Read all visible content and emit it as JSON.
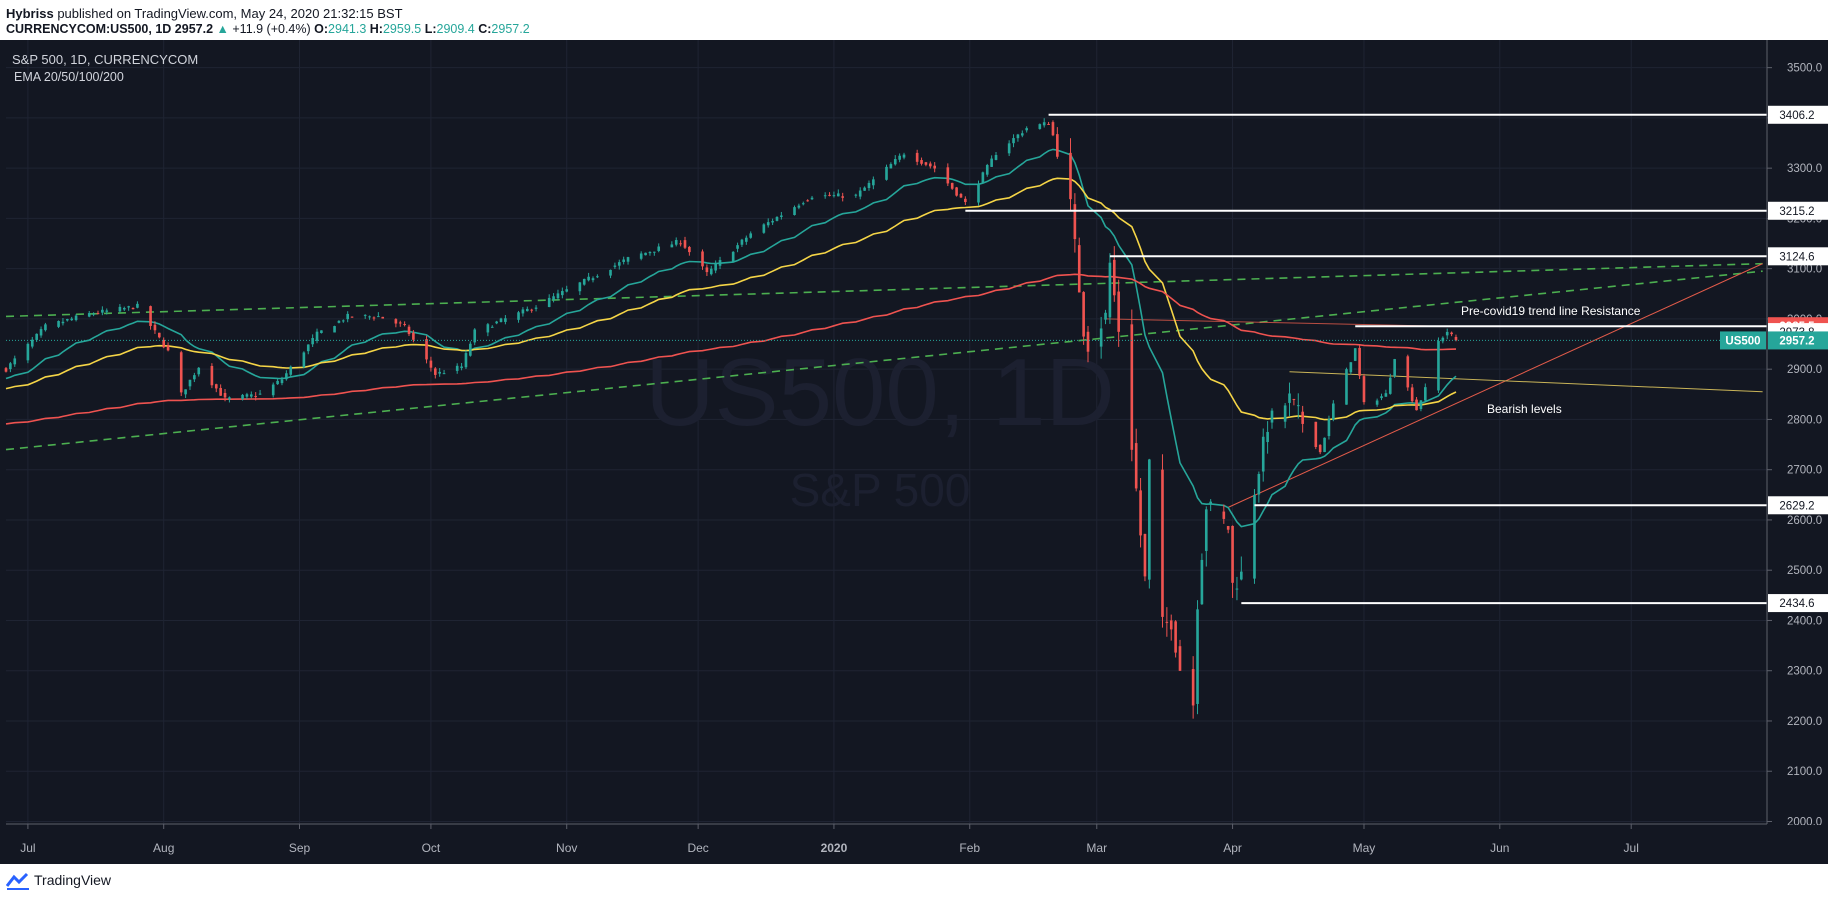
{
  "header": {
    "author": "Hybriss",
    "published_text": "published on TradingView.com, May 24, 2020 21:32:15 BST",
    "symbol": "CURRENCYCOM:US500, 1D",
    "last": "2957.2",
    "change": "+11.9 (+0.4%)",
    "o_label": "O:",
    "o": "2941.3",
    "h_label": "H:",
    "h": "2959.5",
    "l_label": "L:",
    "l": "2909.4",
    "c_label": "C:",
    "c": "2957.2"
  },
  "legend": {
    "title": "S&P 500, 1D, CURRENCYCOM",
    "indicator": "EMA 20/50/100/200"
  },
  "watermark": {
    "symbol": "US500, 1D",
    "name": "S&P 500"
  },
  "annotations": {
    "resistance": "Pre-covid19 trend line Resistance",
    "bearish": "Bearish levels"
  },
  "footer": {
    "brand": "TradingView"
  },
  "colors": {
    "background": "#131722",
    "up": "#26a69a",
    "down": "#ef5350",
    "ema20": "#26a69a",
    "ema50": "#f5d547",
    "ema200": "#ef5350",
    "trend_dashed": "#4caf50",
    "level": "#ffffff"
  },
  "chart_data": {
    "type": "candlestick",
    "y_ticks": [
      "3500.0",
      "3400.0",
      "3300.0",
      "3200.0",
      "3100.0",
      "3000.0",
      "2900.0",
      "2800.0",
      "2700.0",
      "2600.0",
      "2500.0",
      "2400.0",
      "2300.0",
      "2200.0",
      "2100.0",
      "2000.0"
    ],
    "x_ticks": [
      "Jul",
      "Aug",
      "Sep",
      "Oct",
      "Nov",
      "Dec",
      "2020",
      "Feb",
      "Mar",
      "Apr",
      "May",
      "Jun",
      "Jul"
    ],
    "ylim": [
      1995,
      3555
    ],
    "price_labels": [
      {
        "text": "3406.2",
        "value": 3406.2,
        "kind": "level"
      },
      {
        "text": "3215.2",
        "value": 3215.2,
        "kind": "level"
      },
      {
        "text": "3124.6",
        "value": 3124.6,
        "kind": "level"
      },
      {
        "text": "2985.5",
        "value": 2985.5,
        "kind": "red"
      },
      {
        "text": "2973.8",
        "value": 2973.8,
        "kind": "level"
      },
      {
        "text": "2957.2",
        "value": 2957.2,
        "kind": "current",
        "symbol": "US500"
      },
      {
        "text": "2629.2",
        "value": 2629.2,
        "kind": "level"
      },
      {
        "text": "2434.6",
        "value": 2434.6,
        "kind": "level"
      }
    ],
    "anchors": [
      [
        "2019-06-26",
        2900
      ],
      [
        "2019-07-05",
        2985
      ],
      [
        "2019-07-15",
        3010
      ],
      [
        "2019-07-26",
        3025
      ],
      [
        "2019-08-02",
        2935
      ],
      [
        "2019-08-05",
        2850
      ],
      [
        "2019-08-09",
        2905
      ],
      [
        "2019-08-15",
        2840
      ],
      [
        "2019-08-23",
        2850
      ],
      [
        "2019-08-28",
        2880
      ],
      [
        "2019-09-05",
        2970
      ],
      [
        "2019-09-12",
        3005
      ],
      [
        "2019-09-19",
        3005
      ],
      [
        "2019-09-25",
        2985
      ],
      [
        "2019-10-02",
        2890
      ],
      [
        "2019-10-08",
        2905
      ],
      [
        "2019-10-11",
        2975
      ],
      [
        "2019-10-25",
        3025
      ],
      [
        "2019-11-05",
        3075
      ],
      [
        "2019-11-15",
        3120
      ],
      [
        "2019-11-27",
        3155
      ],
      [
        "2019-12-03",
        3090
      ],
      [
        "2019-12-13",
        3170
      ],
      [
        "2019-12-27",
        3245
      ],
      [
        "2020-01-06",
        3245
      ],
      [
        "2020-01-17",
        3330
      ],
      [
        "2020-01-24",
        3300
      ],
      [
        "2020-01-31",
        3230
      ],
      [
        "2020-02-07",
        3330
      ],
      [
        "2020-02-14",
        3380
      ],
      [
        "2020-02-19",
        3390
      ],
      [
        "2020-02-21",
        3340
      ],
      [
        "2020-02-24",
        3225
      ],
      [
        "2020-02-27",
        2980
      ],
      [
        "2020-02-28",
        2950
      ],
      [
        "2020-03-03",
        3005
      ],
      [
        "2020-03-04",
        3110
      ],
      [
        "2020-03-06",
        2980
      ],
      [
        "2020-03-09",
        2750
      ],
      [
        "2020-03-12",
        2480
      ],
      [
        "2020-03-13",
        2710
      ],
      [
        "2020-03-16",
        2390
      ],
      [
        "2020-03-18",
        2400
      ],
      [
        "2020-03-20",
        2305
      ],
      [
        "2020-03-23",
        2235
      ],
      [
        "2020-03-24",
        2440
      ],
      [
        "2020-03-26",
        2630
      ],
      [
        "2020-03-31",
        2585
      ],
      [
        "2020-04-01",
        2470
      ],
      [
        "2020-04-03",
        2490
      ],
      [
        "2020-04-06",
        2660
      ],
      [
        "2020-04-09",
        2790
      ],
      [
        "2020-04-14",
        2840
      ],
      [
        "2020-04-21",
        2735
      ],
      [
        "2020-04-24",
        2830
      ],
      [
        "2020-04-29",
        2940
      ],
      [
        "2020-05-01",
        2830
      ],
      [
        "2020-05-06",
        2850
      ],
      [
        "2020-05-08",
        2925
      ],
      [
        "2020-05-13",
        2820
      ],
      [
        "2020-05-15",
        2860
      ],
      [
        "2020-05-18",
        2955
      ],
      [
        "2020-05-20",
        2975
      ],
      [
        "2020-05-22",
        2957
      ]
    ],
    "overlays": {
      "trend_upper": [
        [
          "2019-06-26",
          3005
        ],
        [
          "2020-07-31",
          3110
        ]
      ],
      "trend_lower": [
        [
          "2019-06-26",
          2740
        ],
        [
          "2020-07-31",
          3095
        ]
      ],
      "channel_red": [
        [
          "2020-03-31",
          2625
        ],
        [
          "2020-07-31",
          3110
        ]
      ],
      "triangle_lower": [
        [
          "2020-04-14",
          2895
        ],
        [
          "2020-07-31",
          2855
        ]
      ],
      "resist_red": [
        [
          "2020-03-03",
          3000
        ],
        [
          "2020-05-21",
          2985
        ]
      ],
      "levels": [
        {
          "value": 3406.2,
          "from": "2020-02-19"
        },
        {
          "value": 3215.2,
          "from": "2020-01-31"
        },
        {
          "value": 3124.6,
          "from": "2020-03-04"
        },
        {
          "value": 2985.5,
          "from": "2020-04-29"
        },
        {
          "value": 2629.2,
          "from": "2020-04-06"
        },
        {
          "value": 2434.6,
          "from": "2020-04-03"
        }
      ]
    }
  }
}
